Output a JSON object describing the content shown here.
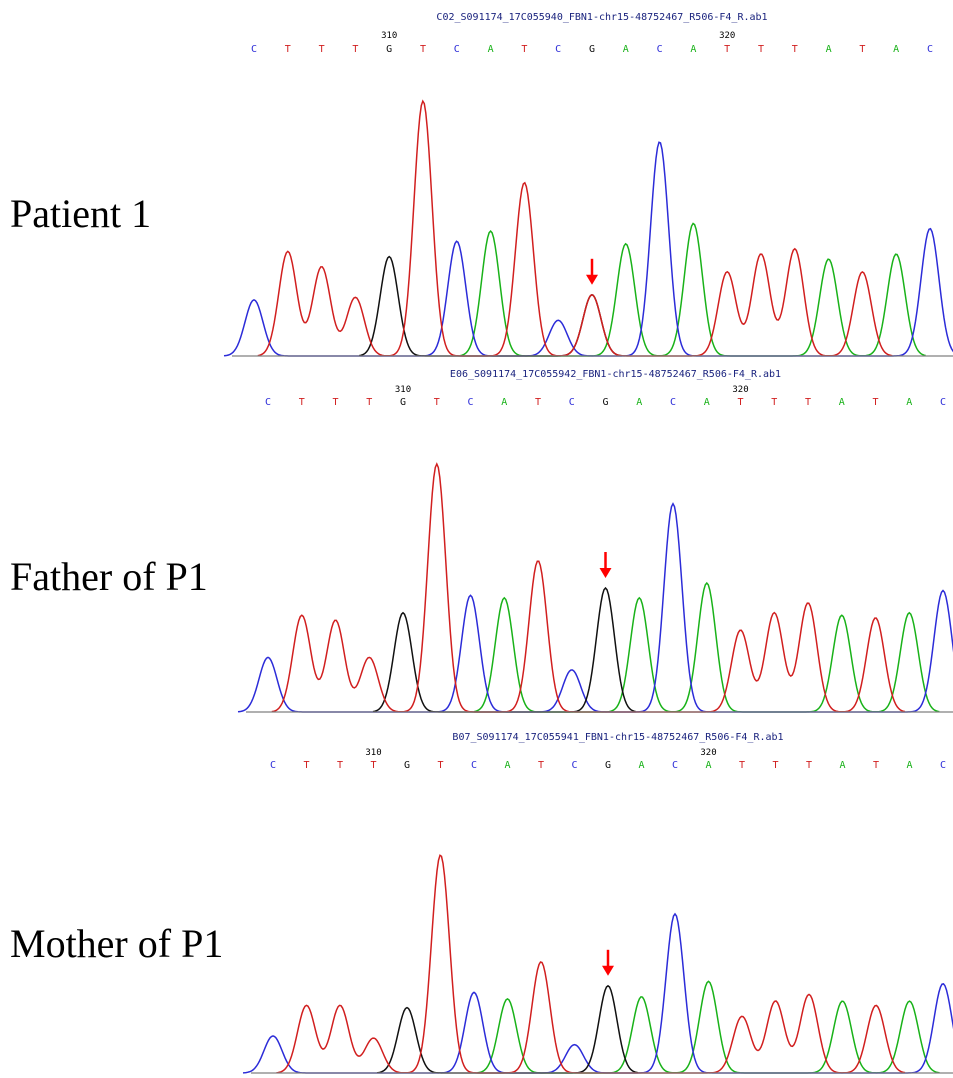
{
  "colors": {
    "A": "#19b219",
    "C": "#2c2cd8",
    "G": "#111111",
    "T": "#d11f1f",
    "arrow": "#ff0000",
    "baseline": "#808080"
  },
  "panels": [
    {
      "label": "Patient 1",
      "filename": "C02_S091174_17C055940_FBN1-chr15-48752467_R506-F4_R.ab1",
      "bases": [
        "C",
        "T",
        "T",
        "T",
        "G",
        "T",
        "C",
        "A",
        "T",
        "C",
        "G",
        "A",
        "C",
        "A",
        "T",
        "T",
        "T",
        "A",
        "T",
        "A",
        "C"
      ],
      "positions": [
        {
          "base_index": 4,
          "value": "310"
        },
        {
          "base_index": 14,
          "value": "320"
        }
      ],
      "peaks": [
        {
          "base": "C",
          "height": 0.22
        },
        {
          "base": "T",
          "height": 0.41
        },
        {
          "base": "T",
          "height": 0.35
        },
        {
          "base": "T",
          "height": 0.23
        },
        {
          "base": "G",
          "height": 0.39
        },
        {
          "base": "T",
          "height": 1.0
        },
        {
          "base": "C",
          "height": 0.45
        },
        {
          "base": "A",
          "height": 0.49
        },
        {
          "base": "T",
          "height": 0.68
        },
        {
          "base": "C",
          "height": 0.14
        },
        {
          "base": "GT",
          "height": 0.24
        },
        {
          "base": "A",
          "height": 0.44
        },
        {
          "base": "C",
          "height": 0.84
        },
        {
          "base": "A",
          "height": 0.52
        },
        {
          "base": "T",
          "height": 0.33
        },
        {
          "base": "T",
          "height": 0.4
        },
        {
          "base": "T",
          "height": 0.42
        },
        {
          "base": "A",
          "height": 0.38
        },
        {
          "base": "T",
          "height": 0.33
        },
        {
          "base": "A",
          "height": 0.4
        },
        {
          "base": "C",
          "height": 0.5
        }
      ],
      "arrow_base_index": 10
    },
    {
      "label": "Father of P1",
      "filename": "E06_S091174_17C055942_FBN1-chr15-48752467_R506-F4_R.ab1",
      "bases": [
        "C",
        "T",
        "T",
        "T",
        "G",
        "T",
        "C",
        "A",
        "T",
        "C",
        "G",
        "A",
        "C",
        "A",
        "T",
        "T",
        "T",
        "A",
        "T",
        "A",
        "C"
      ],
      "positions": [
        {
          "base_index": 4,
          "value": "310"
        },
        {
          "base_index": 14,
          "value": "320"
        }
      ],
      "peaks": [
        {
          "base": "C",
          "height": 0.22
        },
        {
          "base": "T",
          "height": 0.39
        },
        {
          "base": "T",
          "height": 0.37
        },
        {
          "base": "T",
          "height": 0.22
        },
        {
          "base": "G",
          "height": 0.4
        },
        {
          "base": "T",
          "height": 1.0
        },
        {
          "base": "C",
          "height": 0.47
        },
        {
          "base": "A",
          "height": 0.46
        },
        {
          "base": "T",
          "height": 0.61
        },
        {
          "base": "C",
          "height": 0.17
        },
        {
          "base": "G",
          "height": 0.5
        },
        {
          "base": "A",
          "height": 0.46
        },
        {
          "base": "C",
          "height": 0.84
        },
        {
          "base": "A",
          "height": 0.52
        },
        {
          "base": "T",
          "height": 0.33
        },
        {
          "base": "T",
          "height": 0.4
        },
        {
          "base": "T",
          "height": 0.44
        },
        {
          "base": "A",
          "height": 0.39
        },
        {
          "base": "T",
          "height": 0.38
        },
        {
          "base": "A",
          "height": 0.4
        },
        {
          "base": "C",
          "height": 0.49
        }
      ],
      "arrow_base_index": 10
    },
    {
      "label": "Mother of P1",
      "filename": "B07_S091174_17C055941_FBN1-chr15-48752467_R506-F4_R.ab1",
      "bases": [
        "C",
        "T",
        "T",
        "T",
        "G",
        "T",
        "C",
        "A",
        "T",
        "C",
        "G",
        "A",
        "C",
        "A",
        "T",
        "T",
        "T",
        "A",
        "T",
        "A",
        "C"
      ],
      "positions": [
        {
          "base_index": 3,
          "value": "310"
        },
        {
          "base_index": 13,
          "value": "320"
        }
      ],
      "peaks": [
        {
          "base": "C",
          "height": 0.17
        },
        {
          "base": "T",
          "height": 0.31
        },
        {
          "base": "T",
          "height": 0.31
        },
        {
          "base": "T",
          "height": 0.16
        },
        {
          "base": "G",
          "height": 0.3
        },
        {
          "base": "T",
          "height": 1.0
        },
        {
          "base": "C",
          "height": 0.37
        },
        {
          "base": "A",
          "height": 0.34
        },
        {
          "base": "T",
          "height": 0.51
        },
        {
          "base": "C",
          "height": 0.13
        },
        {
          "base": "G",
          "height": 0.4
        },
        {
          "base": "A",
          "height": 0.35
        },
        {
          "base": "C",
          "height": 0.73
        },
        {
          "base": "A",
          "height": 0.42
        },
        {
          "base": "T",
          "height": 0.26
        },
        {
          "base": "T",
          "height": 0.33
        },
        {
          "base": "T",
          "height": 0.36
        },
        {
          "base": "A",
          "height": 0.33
        },
        {
          "base": "T",
          "height": 0.31
        },
        {
          "base": "A",
          "height": 0.33
        },
        {
          "base": "C",
          "height": 0.41
        }
      ],
      "arrow_base_index": 10
    }
  ]
}
